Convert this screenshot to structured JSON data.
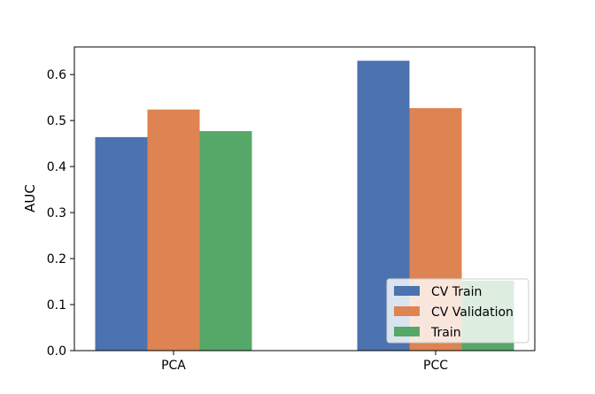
{
  "chart_data": {
    "type": "bar",
    "title": "",
    "xlabel": "",
    "ylabel": "AUC",
    "categories": [
      "PCA",
      "PCC"
    ],
    "series": [
      {
        "name": "CV Train",
        "color": "#4c72b0",
        "values": [
          0.464,
          0.63
        ]
      },
      {
        "name": "CV Validation",
        "color": "#dd8452",
        "values": [
          0.524,
          0.527
        ]
      },
      {
        "name": "Train",
        "color": "#55a868",
        "values": [
          0.477,
          0.152
        ]
      }
    ],
    "ylim": [
      0,
      0.66
    ],
    "yticks": [
      "0.0",
      "0.1",
      "0.2",
      "0.3",
      "0.4",
      "0.5",
      "0.6"
    ],
    "grid": false,
    "legend_position": "lower-right"
  }
}
